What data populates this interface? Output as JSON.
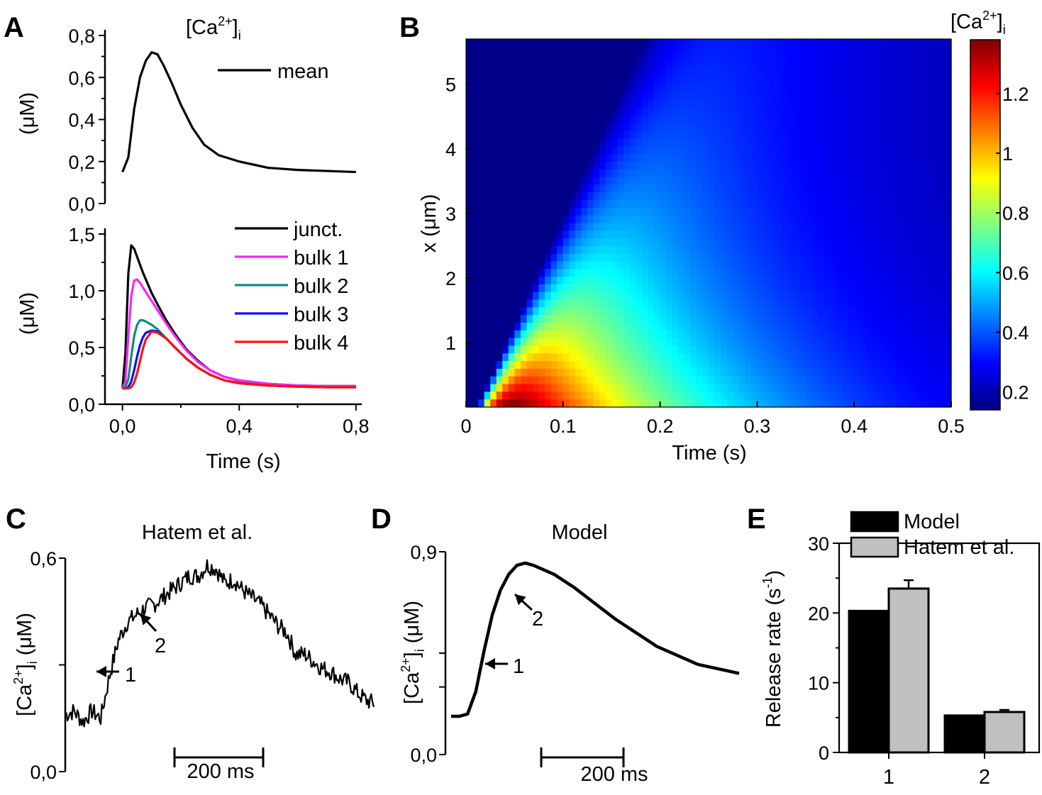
{
  "panels": {
    "A": {
      "label": "A",
      "title_main": "[Ca",
      "title_sup": "2+",
      "title_close": "]",
      "title_sub": "i",
      "top_yunit": "(μM)",
      "bottom_yunit": "(μM)",
      "xlabel": "Time (s)"
    },
    "B": {
      "label": "B",
      "xlabel": "Time (s)",
      "ylabel": "x (μm)",
      "cb_main": "[Ca",
      "cb_sup": "2+",
      "cb_close": "]",
      "cb_sub": "i"
    },
    "C": {
      "label": "C",
      "title": "Hatem et al.",
      "y_main": "[Ca",
      "y_sup": "2+",
      "y_close": "]",
      "y_sub": "i",
      "y_unit": " (μM)",
      "scalebar": "200 ms",
      "arrow1": "1",
      "arrow2": "2"
    },
    "D": {
      "label": "D",
      "title": "Model",
      "y_main": "[Ca",
      "y_sup": "2+",
      "y_close": "]",
      "y_sub": "i",
      "y_unit": " (μM)",
      "scalebar": "200 ms",
      "arrow1": "1",
      "arrow2": "2"
    },
    "E": {
      "label": "E",
      "y_main": "Release rate (s",
      "y_sup": "-1",
      "y_close": ")"
    }
  },
  "chart_data": [
    {
      "id": "A-top",
      "type": "line",
      "x": [
        0.0,
        0.02,
        0.04,
        0.06,
        0.08,
        0.1,
        0.12,
        0.14,
        0.17,
        0.2,
        0.24,
        0.28,
        0.33,
        0.4,
        0.5,
        0.6,
        0.7,
        0.8
      ],
      "series": [
        {
          "name": "mean",
          "color": "#000000",
          "values": [
            0.15,
            0.22,
            0.45,
            0.6,
            0.68,
            0.72,
            0.71,
            0.66,
            0.57,
            0.47,
            0.36,
            0.28,
            0.23,
            0.2,
            0.17,
            0.16,
            0.155,
            0.15
          ]
        }
      ],
      "xlim": [
        -0.06,
        0.82
      ],
      "ylim": [
        0,
        0.8
      ],
      "yticks": [
        "0,0",
        "0,2",
        "0,4",
        "0,6",
        "0,8"
      ],
      "yticks_values": [
        0,
        0.2,
        0.4,
        0.6,
        0.8
      ]
    },
    {
      "id": "A-bottom",
      "type": "line",
      "x": [
        0.0,
        0.01,
        0.02,
        0.03,
        0.04,
        0.05,
        0.06,
        0.07,
        0.08,
        0.1,
        0.12,
        0.15,
        0.18,
        0.22,
        0.26,
        0.3,
        0.35,
        0.4,
        0.5,
        0.6,
        0.7,
        0.8
      ],
      "series": [
        {
          "name": "junct.",
          "color": "#000000",
          "values": [
            0.14,
            0.45,
            1.15,
            1.4,
            1.37,
            1.3,
            1.23,
            1.16,
            1.1,
            0.98,
            0.88,
            0.74,
            0.62,
            0.48,
            0.38,
            0.3,
            0.24,
            0.21,
            0.18,
            0.165,
            0.16,
            0.16
          ]
        },
        {
          "name": "bulk 1",
          "color": "#ff22ff",
          "values": [
            0.14,
            0.2,
            0.6,
            0.95,
            1.09,
            1.1,
            1.07,
            1.03,
            0.99,
            0.91,
            0.83,
            0.71,
            0.6,
            0.47,
            0.37,
            0.3,
            0.24,
            0.21,
            0.18,
            0.165,
            0.16,
            0.16
          ]
        },
        {
          "name": "bulk 2",
          "color": "#0f8a82",
          "values": [
            0.14,
            0.15,
            0.22,
            0.42,
            0.6,
            0.7,
            0.74,
            0.74,
            0.73,
            0.7,
            0.66,
            0.58,
            0.5,
            0.4,
            0.32,
            0.26,
            0.21,
            0.19,
            0.165,
            0.155,
            0.15,
            0.15
          ]
        },
        {
          "name": "bulk 3",
          "color": "#0a10ee",
          "values": [
            0.14,
            0.14,
            0.15,
            0.2,
            0.3,
            0.42,
            0.52,
            0.59,
            0.63,
            0.65,
            0.64,
            0.58,
            0.5,
            0.4,
            0.32,
            0.26,
            0.21,
            0.185,
            0.165,
            0.155,
            0.15,
            0.15
          ]
        },
        {
          "name": "bulk 4",
          "color": "#ff1010",
          "values": [
            0.14,
            0.14,
            0.14,
            0.15,
            0.19,
            0.27,
            0.38,
            0.49,
            0.57,
            0.64,
            0.63,
            0.58,
            0.5,
            0.4,
            0.32,
            0.26,
            0.21,
            0.185,
            0.165,
            0.155,
            0.15,
            0.15
          ]
        }
      ],
      "xlim": [
        -0.06,
        0.82
      ],
      "ylim": [
        0,
        1.5
      ],
      "xticks": [
        "0,0",
        "0,4",
        "0,8"
      ],
      "xticks_values": [
        0,
        0.4,
        0.8
      ],
      "yticks": [
        "0,0",
        "0,5",
        "1,0",
        "1,5"
      ],
      "yticks_values": [
        0,
        0.5,
        1.0,
        1.5
      ],
      "legend": "top-right"
    },
    {
      "id": "B",
      "type": "heatmap",
      "xlim": [
        0,
        0.5
      ],
      "ylim": [
        0,
        5.7
      ],
      "zlim": [
        0.14,
        1.38
      ],
      "xticks": [
        "0",
        "0.1",
        "0.2",
        "0.3",
        "0.4",
        "0.5"
      ],
      "xticks_values": [
        0,
        0.1,
        0.2,
        0.3,
        0.4,
        0.5
      ],
      "yticks": [
        "1",
        "2",
        "3",
        "4",
        "5"
      ],
      "yticks_values": [
        1,
        2,
        3,
        4,
        5
      ],
      "colorbar_ticks": [
        "0.2",
        "0.4",
        "0.6",
        "0.8",
        "1",
        "1.2"
      ],
      "colorbar_values": [
        0.2,
        0.4,
        0.6,
        0.8,
        1.0,
        1.2
      ],
      "colormap": "jet"
    },
    {
      "id": "C",
      "type": "line",
      "x": [
        0,
        20,
        40,
        60,
        80,
        100,
        120,
        140,
        160,
        180,
        200,
        220,
        240,
        260,
        280,
        300,
        320,
        340,
        360,
        380,
        400,
        420,
        440,
        460,
        480,
        500,
        520,
        540,
        560,
        580,
        600,
        620,
        640,
        660,
        680,
        700
      ],
      "series": [
        {
          "name": "",
          "color": "#000000",
          "values": [
            0.16,
            0.17,
            0.14,
            0.17,
            0.15,
            0.27,
            0.37,
            0.42,
            0.44,
            0.46,
            0.47,
            0.49,
            0.51,
            0.53,
            0.55,
            0.55,
            0.58,
            0.57,
            0.53,
            0.54,
            0.51,
            0.49,
            0.47,
            0.44,
            0.41,
            0.39,
            0.33,
            0.33,
            0.31,
            0.29,
            0.28,
            0.26,
            0.25,
            0.22,
            0.2,
            0.19
          ]
        }
      ],
      "ylim": [
        0,
        0.6
      ],
      "yticks": [
        "0,0",
        "0,6"
      ],
      "yticks_values": [
        0,
        0.6
      ],
      "scalebar_ms": 200,
      "arrows": [
        {
          "label": "1",
          "x": 80,
          "y": 0.28
        },
        {
          "label": "2",
          "x": 200,
          "y": 0.47
        }
      ]
    },
    {
      "id": "D",
      "type": "line",
      "x": [
        0,
        20,
        40,
        60,
        80,
        100,
        120,
        140,
        160,
        180,
        200,
        250,
        300,
        350,
        400,
        450,
        500,
        550,
        600,
        650,
        700
      ],
      "series": [
        {
          "name": "",
          "color": "#000000",
          "values": [
            0.17,
            0.17,
            0.18,
            0.28,
            0.46,
            0.62,
            0.73,
            0.8,
            0.84,
            0.85,
            0.84,
            0.8,
            0.74,
            0.67,
            0.6,
            0.54,
            0.48,
            0.44,
            0.4,
            0.38,
            0.36
          ]
        }
      ],
      "ylim": [
        0,
        0.9
      ],
      "yticks": [
        "0,0",
        "0,9"
      ],
      "yticks_values": [
        0,
        0.9
      ],
      "scalebar_ms": 200,
      "arrows": [
        {
          "label": "1",
          "x": 90,
          "y": 0.45
        },
        {
          "label": "2",
          "x": 140,
          "y": 0.8
        }
      ]
    },
    {
      "id": "E",
      "type": "bar",
      "categories": [
        "1",
        "2"
      ],
      "series": [
        {
          "name": "Model",
          "color": "#000000",
          "values": [
            20.3,
            5.3
          ],
          "errors": [
            0,
            0
          ]
        },
        {
          "name": "Hatem et al.",
          "color": "#c0c0c0",
          "values": [
            23.5,
            5.8
          ],
          "errors": [
            1.2,
            0.3
          ]
        }
      ],
      "ylim": [
        0,
        30
      ],
      "yticks": [
        "0",
        "10",
        "20",
        "30"
      ],
      "yticks_values": [
        0,
        10,
        20,
        30
      ],
      "legend": "top-right"
    }
  ]
}
